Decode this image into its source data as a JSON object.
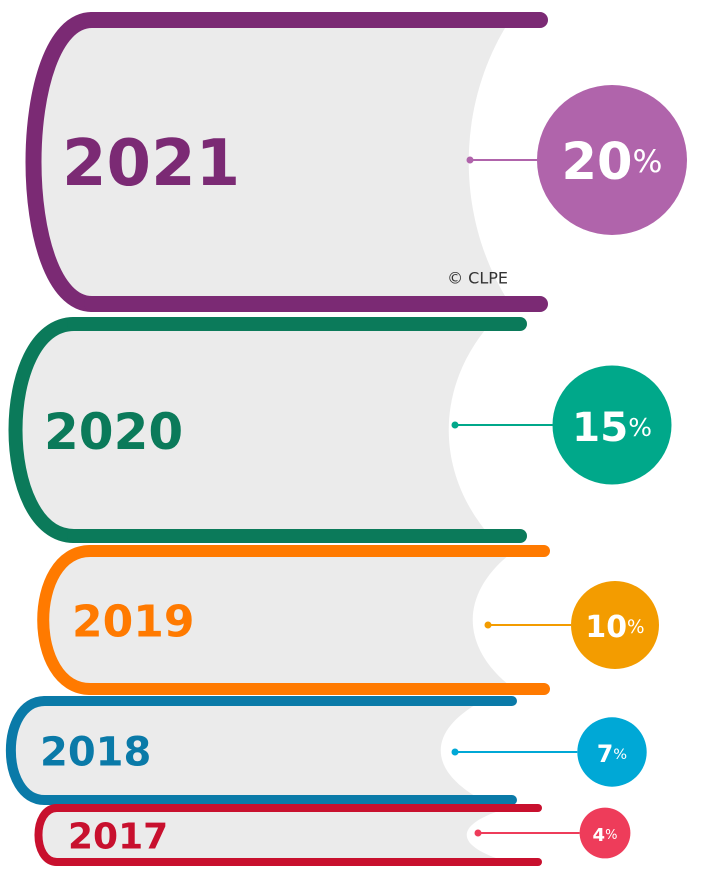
{
  "chart_data": {
    "type": "book-stack",
    "categories": [
      "2021",
      "2020",
      "2019",
      "2018",
      "2017"
    ],
    "values": [
      20,
      15,
      10,
      7,
      4
    ],
    "unit_label": "%",
    "colors": [
      "#7b2a74",
      "#0b7a5a",
      "#ff7a00",
      "#0a7aa8",
      "#c8102e"
    ],
    "bubble_colors": [
      "#b064ab",
      "#00a88a",
      "#f39c00",
      "#00a8d6",
      "#ee3c5a"
    ],
    "credit": "© CLPE"
  }
}
